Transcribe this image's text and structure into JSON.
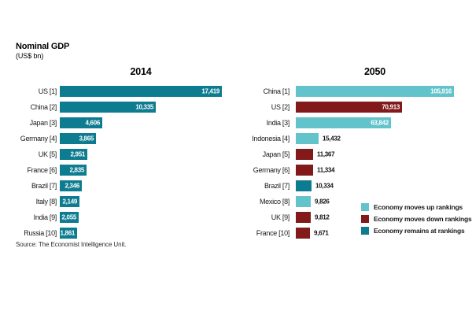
{
  "title": "Nominal GDP",
  "subtitle": "(US$ bn)",
  "source": "Source: The Economist Intelligence Unit.",
  "colors": {
    "teal_light": "#62c4ca",
    "red_dark": "#821a1b",
    "teal_dark": "#0e7c90"
  },
  "legend": [
    {
      "label": "Economy moves up rankings",
      "color": "teal_light"
    },
    {
      "label": "Economy moves down rankings",
      "color": "red_dark"
    },
    {
      "label": "Economy remains at rankings",
      "color": "teal_dark"
    }
  ],
  "chart_data": [
    {
      "type": "bar",
      "orientation": "horizontal",
      "title": "2014",
      "unit": "US$ bn",
      "axis": "none",
      "grid": false,
      "rows": [
        {
          "label": "US [1]",
          "value": 17419,
          "value_label": "17,419",
          "color": "teal_dark",
          "value_inside": true
        },
        {
          "label": "China [2]",
          "value": 10335,
          "value_label": "10,335",
          "color": "teal_dark",
          "value_inside": true
        },
        {
          "label": "Japan [3]",
          "value": 4606,
          "value_label": "4,606",
          "color": "teal_dark",
          "value_inside": true
        },
        {
          "label": "Germany [4]",
          "value": 3865,
          "value_label": "3,865",
          "color": "teal_dark",
          "value_inside": true
        },
        {
          "label": "UK [5]",
          "value": 2951,
          "value_label": "2,951",
          "color": "teal_dark",
          "value_inside": true
        },
        {
          "label": "France [6]",
          "value": 2835,
          "value_label": "2,835",
          "color": "teal_dark",
          "value_inside": true
        },
        {
          "label": "Brazil [7]",
          "value": 2346,
          "value_label": "2,346",
          "color": "teal_dark",
          "value_inside": true
        },
        {
          "label": "Italy [8]",
          "value": 2149,
          "value_label": "2,149",
          "color": "teal_dark",
          "value_inside": true
        },
        {
          "label": "India [9]",
          "value": 2055,
          "value_label": "2,055",
          "color": "teal_dark",
          "value_inside": true
        },
        {
          "label": "Russia [10]",
          "value": 1861,
          "value_label": "1,861",
          "color": "teal_dark",
          "value_inside": true
        }
      ]
    },
    {
      "type": "bar",
      "orientation": "horizontal",
      "title": "2050",
      "unit": "US$ bn",
      "axis": "none",
      "grid": false,
      "rows": [
        {
          "label": "China [1]",
          "value": 105916,
          "value_label": "105,916",
          "color": "teal_light",
          "value_inside": true
        },
        {
          "label": "US [2]",
          "value": 70913,
          "value_label": "70,913",
          "color": "red_dark",
          "value_inside": true
        },
        {
          "label": "India [3]",
          "value": 63842,
          "value_label": "63,842",
          "color": "teal_light",
          "value_inside": true
        },
        {
          "label": "Indonesia [4]",
          "value": 15432,
          "value_label": "15,432",
          "color": "teal_light",
          "value_inside": false
        },
        {
          "label": "Japan [5]",
          "value": 11367,
          "value_label": "11,367",
          "color": "red_dark",
          "value_inside": false
        },
        {
          "label": "Germany [6]",
          "value": 11334,
          "value_label": "11,334",
          "color": "red_dark",
          "value_inside": false
        },
        {
          "label": "Brazil [7]",
          "value": 10334,
          "value_label": "10,334",
          "color": "teal_dark",
          "value_inside": false
        },
        {
          "label": "Mexico [8]",
          "value": 9826,
          "value_label": "9,826",
          "color": "teal_light",
          "value_inside": false
        },
        {
          "label": "UK [9]",
          "value": 9812,
          "value_label": "9,812",
          "color": "red_dark",
          "value_inside": false
        },
        {
          "label": "France [10]",
          "value": 9671,
          "value_label": "9,671",
          "color": "red_dark",
          "value_inside": false
        }
      ]
    }
  ]
}
